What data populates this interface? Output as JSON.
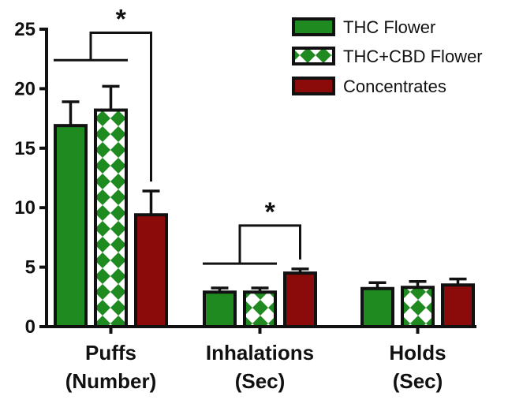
{
  "chart_data": {
    "type": "bar",
    "title": "",
    "xlabel": "",
    "ylabel": "",
    "ylim": [
      0,
      25
    ],
    "yticks": [
      0,
      5,
      10,
      15,
      20,
      25
    ],
    "categories": [
      {
        "line1": "Puffs",
        "line2": "(Number)"
      },
      {
        "line1": "Inhalations",
        "line2": "(Sec)"
      },
      {
        "line1": "Holds",
        "line2": "(Sec)"
      }
    ],
    "series": [
      {
        "name": "THC Flower",
        "color": "#1f8a1f",
        "pattern": "solid",
        "values": [
          16.9,
          2.9,
          3.2
        ],
        "errors": [
          2.0,
          0.35,
          0.5
        ]
      },
      {
        "name": "THC+CBD Flower",
        "color": "#1f8a1f",
        "pattern": "diamond-check",
        "values": [
          18.2,
          2.9,
          3.3
        ],
        "errors": [
          2.0,
          0.35,
          0.5
        ]
      },
      {
        "name": "Concentrates",
        "color": "#8b0a0a",
        "pattern": "solid",
        "values": [
          9.4,
          4.5,
          3.5
        ],
        "errors": [
          2.0,
          0.35,
          0.5
        ]
      }
    ],
    "significance": [
      {
        "label": "*",
        "category": 0,
        "group": [
          0,
          1
        ],
        "versus": 2,
        "bracket_y": 24.7,
        "group_line_y": 22.4
      },
      {
        "label": "*",
        "category": 1,
        "group": [
          0,
          1
        ],
        "versus": 2,
        "bracket_y": 8.5,
        "group_line_y": 5.3
      }
    ],
    "legend": {
      "position": "top-right"
    }
  }
}
